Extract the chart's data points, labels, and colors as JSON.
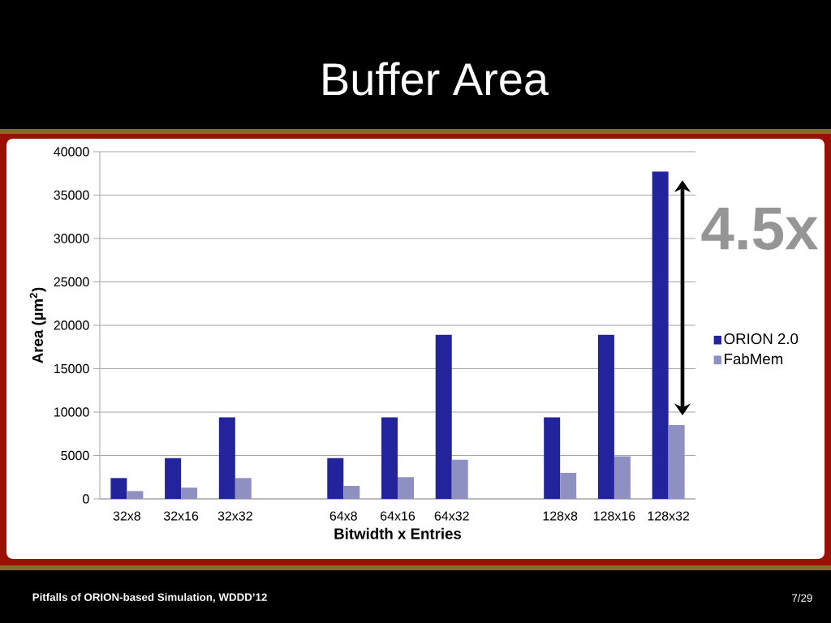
{
  "chart_data": {
    "type": "bar",
    "title": "Buffer Area",
    "xlabel": "Bitwidth x Entries",
    "ylabel": "Area (µm$^{2}$)",
    "categories": [
      "32x8",
      "32x16",
      "32x32",
      null,
      "64x8",
      "64x16",
      "64x32",
      null,
      "128x8",
      "128x16",
      "128x32"
    ],
    "series": [
      {
        "name": "ORION 2.0",
        "color": "#23239b",
        "values": [
          2400,
          4700,
          9400,
          null,
          4700,
          9400,
          18900,
          null,
          9400,
          18900,
          37700
        ]
      },
      {
        "name": "FabMem",
        "color": "#8f90c2",
        "values": [
          900,
          1300,
          2400,
          null,
          1500,
          2500,
          4500,
          null,
          3000,
          4900,
          8500
        ]
      }
    ],
    "ylim": [
      0,
      40000
    ],
    "yticks": [
      0,
      5000,
      10000,
      15000,
      20000,
      25000,
      30000,
      35000,
      40000
    ],
    "grid": "y",
    "legend": "right",
    "annotations": [
      "4.5x",
      "Pitfalls of ORION-based Simulation, WDDD’12",
      "7/29"
    ]
  }
}
